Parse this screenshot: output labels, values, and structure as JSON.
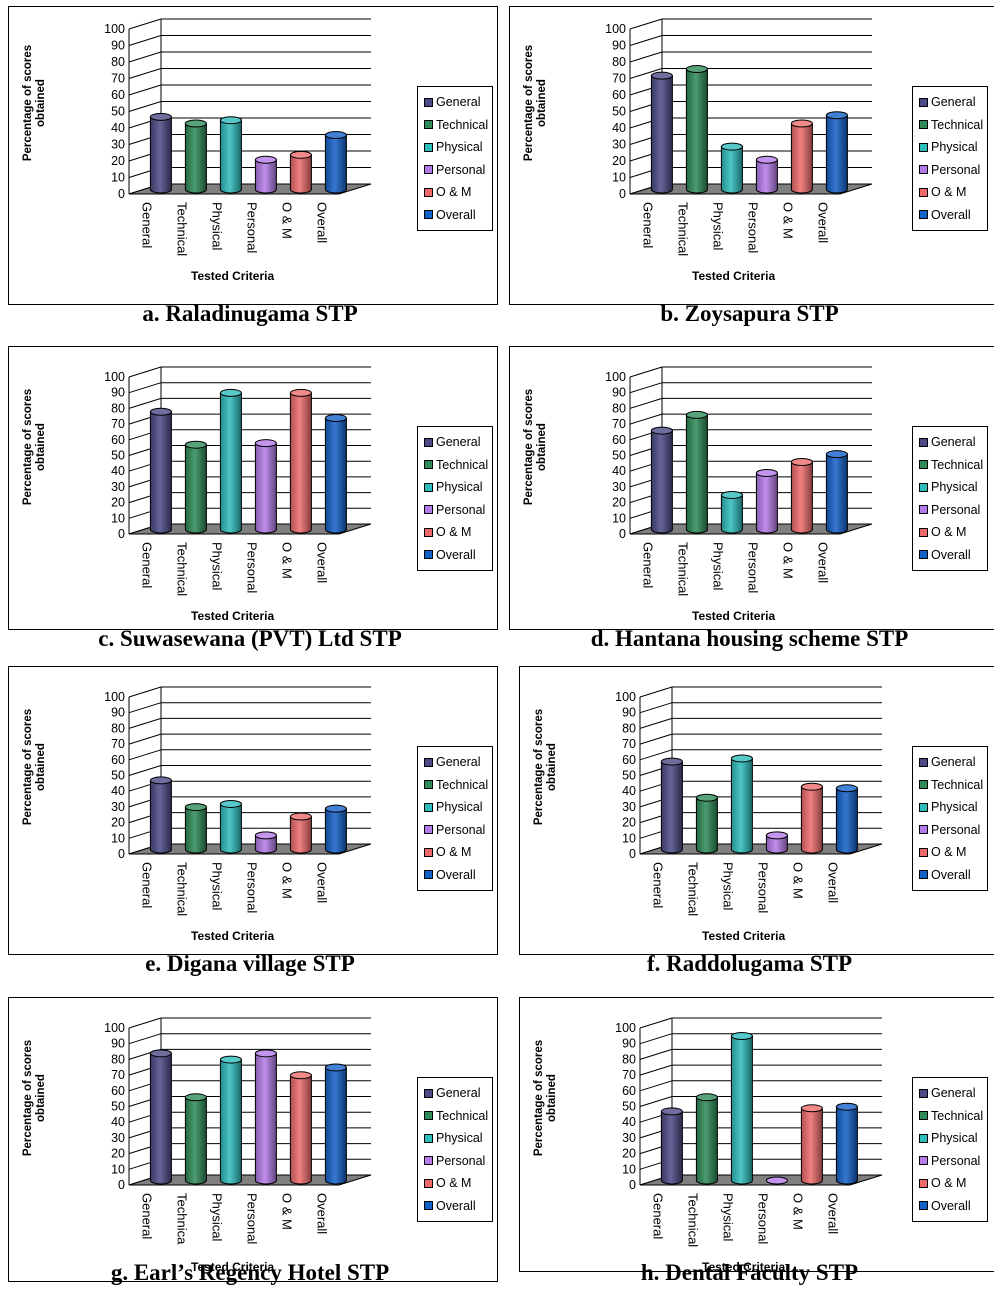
{
  "colors": {
    "General": "#4b4a86",
    "Technical": "#2e8b57",
    "Physical": "#2dbcbc",
    "Personal": "#b57be9",
    "O & M": "#ef6b6b",
    "Overall": "#1260c9"
  },
  "icons": [
    "legend-swatch"
  ],
  "chart_data": [
    {
      "type": "bar",
      "caption": "a. Raladinugama STP",
      "ylabel": "Percentage of scores obtained",
      "xlabel": "Tested Criteria",
      "ylim": [
        0,
        100
      ],
      "yticks": [
        "0",
        "10",
        "20",
        "30",
        "40",
        "50",
        "60",
        "70",
        "80",
        "90",
        "100"
      ],
      "categories": [
        "General",
        "Technical",
        "Physical",
        "Personal",
        "O & M",
        "Overall"
      ],
      "legend": [
        "General",
        "Technical",
        "Physical",
        "Personal",
        "O & M",
        "Overall"
      ],
      "values": [
        44,
        40,
        42,
        18,
        21,
        33
      ]
    },
    {
      "type": "bar",
      "caption": "b. Zoysapura STP",
      "ylabel": "Percentage of scores obtained",
      "xlabel": "Tested Criteria",
      "ylim": [
        0,
        100
      ],
      "yticks": [
        "0",
        "10",
        "20",
        "30",
        "40",
        "50",
        "60",
        "70",
        "80",
        "90",
        "100"
      ],
      "categories": [
        "General",
        "Technical",
        "Physical",
        "Personal",
        "O & M",
        "Overall"
      ],
      "legend": [
        "General",
        "Technical",
        "Physical",
        "Personal",
        "O & M",
        "Overall"
      ],
      "values": [
        69,
        73,
        26,
        18,
        40,
        45
      ]
    },
    {
      "type": "bar",
      "caption": "c. Suwasewana (PVT) Ltd STP",
      "ylabel": "Percentage of scores obtained",
      "xlabel": "Tested Criteria",
      "ylim": [
        0,
        100
      ],
      "yticks": [
        "0",
        "10",
        "20",
        "30",
        "40",
        "50",
        "60",
        "70",
        "80",
        "90",
        "100"
      ],
      "categories": [
        "General",
        "Technical",
        "Physical",
        "Personal",
        "O & M",
        "Overall"
      ],
      "legend": [
        "General",
        "Technical",
        "Physical",
        "Personal",
        "O & M",
        "Overall"
      ],
      "values": [
        75,
        54,
        87,
        55,
        87,
        71
      ]
    },
    {
      "type": "bar",
      "caption": "d. Hantana housing scheme STP",
      "ylabel": "Percentage of scores obtained",
      "xlabel": "Tested Criteria",
      "ylim": [
        0,
        100
      ],
      "yticks": [
        "0",
        "10",
        "20",
        "30",
        "40",
        "50",
        "60",
        "70",
        "80",
        "90",
        "100"
      ],
      "categories": [
        "General",
        "Technical",
        "Physical",
        "Personal",
        "O & M",
        "Overall"
      ],
      "legend": [
        "General",
        "Technical",
        "Physical",
        "Personal",
        "O & M",
        "Overall"
      ],
      "values": [
        63,
        73,
        22,
        36,
        43,
        48
      ]
    },
    {
      "type": "bar",
      "caption": "e. Digana village STP",
      "ylabel": "Percentage of scores obtained",
      "xlabel": "Tested Criteria",
      "ylim": [
        0,
        100
      ],
      "yticks": [
        "0",
        "10",
        "20",
        "30",
        "40",
        "50",
        "60",
        "70",
        "80",
        "90",
        "100"
      ],
      "categories": [
        "General",
        "Technical",
        "Physical",
        "Personal",
        "O & M",
        "Overall"
      ],
      "legend": [
        "General",
        "Technical",
        "Physical",
        "Personal",
        "O & M",
        "Overall"
      ],
      "values": [
        44,
        27,
        29,
        9,
        21,
        26
      ]
    },
    {
      "type": "bar",
      "caption": "f. Raddolugama STP",
      "ylabel": "Percentage of scores obtained",
      "xlabel": "Tested Criteria",
      "ylim": [
        0,
        100
      ],
      "yticks": [
        "0",
        "10",
        "20",
        "30",
        "40",
        "50",
        "60",
        "70",
        "80",
        "90",
        "100"
      ],
      "categories": [
        "General",
        "Technical",
        "Physical",
        "Personal",
        "O & M",
        "Overall"
      ],
      "legend": [
        "General",
        "Technical",
        "Physical",
        "Personal",
        "O & M",
        "Overall"
      ],
      "values": [
        56,
        33,
        58,
        9,
        40,
        39
      ]
    },
    {
      "type": "bar",
      "caption": "g. Earl’s Regency Hotel STP",
      "ylabel": "Percentage of  scores obtained",
      "xlabel": "Tested Criteria",
      "ylim": [
        0,
        100
      ],
      "yticks": [
        "0",
        "10",
        "20",
        "30",
        "40",
        "50",
        "60",
        "70",
        "80",
        "90",
        "100"
      ],
      "categories": [
        "General",
        "Technica",
        "Physical",
        "Personal",
        "O & M",
        "Overall"
      ],
      "legend": [
        "General",
        "Technical",
        "Physical",
        "Personal",
        "O & M",
        "Overall"
      ],
      "values": [
        81,
        53,
        77,
        81,
        67,
        72
      ]
    },
    {
      "type": "bar",
      "caption": "h. Dental Faculty STP",
      "ylabel": "Percentage of scores obtained",
      "xlabel": "Tested Criteria",
      "ylim": [
        0,
        100
      ],
      "yticks": [
        "0",
        "10",
        "20",
        "30",
        "40",
        "50",
        "60",
        "70",
        "80",
        "90",
        "100"
      ],
      "categories": [
        "General",
        "Technical",
        "Physical",
        "Personal",
        "O & M",
        "Overall"
      ],
      "legend": [
        "General",
        "Technical",
        "Physical",
        "Personal",
        "O & M",
        "Overall"
      ],
      "values": [
        44,
        53,
        92,
        0,
        46,
        47
      ]
    }
  ]
}
